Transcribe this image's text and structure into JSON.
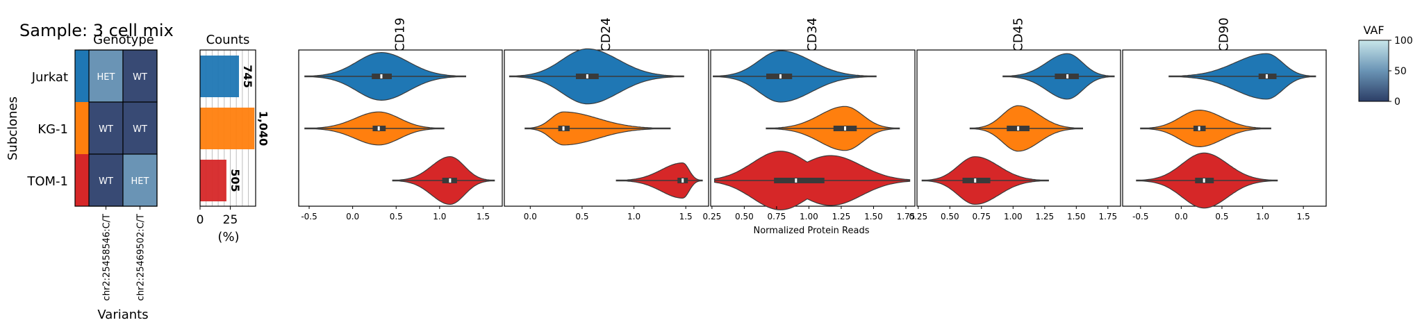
{
  "figure_title": "Sample: 3 cell mix",
  "colors": {
    "Jurkat": "#1f77b4",
    "KG-1": "#ff7f0e",
    "TOM-1": "#d62728",
    "het_cell": "#6a94b5",
    "wt_cell": "#384a74",
    "cmap_low": "#2c3e66",
    "cmap_mid": "#6a94b5",
    "cmap_high": "#c8e6ea"
  },
  "chart_data": [
    {
      "type": "heatmap",
      "title": "Genotype",
      "ylabel": "Subclones",
      "xlabel": "Variants",
      "rows": [
        "Jurkat",
        "KG-1",
        "TOM-1"
      ],
      "columns": [
        "chr2:25458546:C/T",
        "chr2:25469502:C/T"
      ],
      "cells": [
        [
          "HET",
          "WT"
        ],
        [
          "WT",
          "WT"
        ],
        [
          "WT",
          "HET"
        ]
      ]
    },
    {
      "type": "bar",
      "title": "Counts",
      "xlabel": "(%)",
      "categories": [
        "Jurkat",
        "KG-1",
        "TOM-1"
      ],
      "values": [
        32.2,
        45.0,
        21.8
      ],
      "data_labels": [
        "745",
        "1,040",
        "505"
      ],
      "xlim": [
        0,
        46
      ],
      "xticks": [
        "0",
        "25"
      ]
    },
    {
      "type": "violin",
      "title": "CD19",
      "xlabel": "Normalized Protein Reads",
      "xlim": [
        -0.62,
        1.72
      ],
      "xticks": [
        "-0.5",
        "0.0",
        "0.5",
        "1.0",
        "1.5"
      ],
      "series": [
        {
          "name": "Jurkat",
          "min": -0.55,
          "q1": 0.22,
          "median": 0.33,
          "q3": 0.45,
          "max": 1.3,
          "width": 0.65,
          "bimodal": false
        },
        {
          "name": "KG-1",
          "min": -0.55,
          "q1": 0.23,
          "median": 0.3,
          "q3": 0.38,
          "max": 1.05,
          "width": 0.45,
          "bimodal": false
        },
        {
          "name": "TOM-1",
          "min": 0.46,
          "q1": 1.03,
          "median": 1.12,
          "q3": 1.2,
          "max": 1.63,
          "width": 0.65,
          "bimodal": false
        }
      ]
    },
    {
      "type": "violin",
      "title": "CD24",
      "xlim": [
        -0.25,
        1.72
      ],
      "xticks": [
        "0.0",
        "0.5",
        "1.0",
        "1.5"
      ],
      "series": [
        {
          "name": "Jurkat",
          "min": -0.2,
          "q1": 0.44,
          "median": 0.55,
          "q3": 0.66,
          "max": 1.48,
          "width": 0.75,
          "bimodal": false
        },
        {
          "name": "KG-1",
          "min": -0.05,
          "q1": 0.27,
          "median": 0.32,
          "q3": 0.38,
          "max": 1.35,
          "width": 0.45,
          "bimodal": false
        },
        {
          "name": "TOM-1",
          "min": 0.83,
          "q1": 1.42,
          "median": 1.47,
          "q3": 1.52,
          "max": 1.66,
          "width": 0.48,
          "bimodal": false
        }
      ]
    },
    {
      "type": "violin",
      "title": "CD34",
      "xlim": [
        0.24,
        1.82
      ],
      "xticks": [
        "0.25",
        "0.50",
        "0.75",
        "1.00",
        "1.25",
        "1.50",
        "1.75"
      ],
      "series": [
        {
          "name": "Jurkat",
          "min": 0.26,
          "q1": 0.67,
          "median": 0.78,
          "q3": 0.87,
          "max": 1.52,
          "width": 0.7,
          "bimodal": false
        },
        {
          "name": "KG-1",
          "min": 0.67,
          "q1": 1.19,
          "median": 1.28,
          "q3": 1.37,
          "max": 1.7,
          "width": 0.6,
          "bimodal": false
        },
        {
          "name": "TOM-1",
          "min": 0.27,
          "q1": 0.73,
          "median": 0.9,
          "q3": 1.12,
          "max": 1.78,
          "width": 0.8,
          "bimodal": true
        }
      ]
    },
    {
      "type": "violin",
      "title": "CD45",
      "xlim": [
        0.24,
        1.85
      ],
      "xticks": [
        "0.25",
        "0.50",
        "0.75",
        "1.00",
        "1.25",
        "1.50",
        "1.75"
      ],
      "series": [
        {
          "name": "Jurkat",
          "min": 0.92,
          "q1": 1.33,
          "median": 1.43,
          "q3": 1.52,
          "max": 1.8,
          "width": 0.62,
          "bimodal": false
        },
        {
          "name": "KG-1",
          "min": 0.66,
          "q1": 0.95,
          "median": 1.04,
          "q3": 1.13,
          "max": 1.55,
          "width": 0.62,
          "bimodal": false
        },
        {
          "name": "TOM-1",
          "min": 0.28,
          "q1": 0.6,
          "median": 0.7,
          "q3": 0.82,
          "max": 1.28,
          "width": 0.65,
          "bimodal": false
        }
      ]
    },
    {
      "type": "violin",
      "title": "CD90",
      "xlim": [
        -0.72,
        1.78
      ],
      "xticks": [
        "-0.5",
        "0.0",
        "0.5",
        "1.0",
        "1.5"
      ],
      "series": [
        {
          "name": "Jurkat",
          "min": -0.15,
          "q1": 0.95,
          "median": 1.05,
          "q3": 1.17,
          "max": 1.65,
          "width": 0.62,
          "bimodal": false
        },
        {
          "name": "KG-1",
          "min": -0.5,
          "q1": 0.15,
          "median": 0.22,
          "q3": 0.3,
          "max": 1.1,
          "width": 0.5,
          "bimodal": false
        },
        {
          "name": "TOM-1",
          "min": -0.55,
          "q1": 0.17,
          "median": 0.28,
          "q3": 0.4,
          "max": 1.18,
          "width": 0.75,
          "bimodal": false
        }
      ]
    }
  ],
  "colorbar": {
    "label": "VAF",
    "range": [
      0,
      100
    ],
    "ticks": [
      "100",
      "50",
      "0"
    ]
  }
}
